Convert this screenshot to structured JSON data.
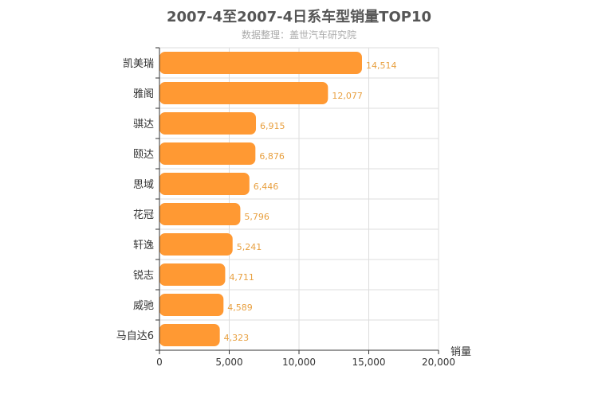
{
  "title": "2007-4至2007-4日系车型销量TOP10",
  "subtitle": "数据整理：盖世汽车研究院",
  "colors": {
    "bar": "#ff9933",
    "value_label": "#e8a040",
    "grid": "#dddddd",
    "axis": "#333333"
  },
  "chart_data": {
    "type": "bar",
    "orientation": "horizontal",
    "title": "2007-4至2007-4日系车型销量TOP10",
    "subtitle": "数据整理：盖世汽车研究院",
    "categories": [
      "凯美瑞",
      "雅阁",
      "骐达",
      "颐达",
      "思域",
      "花冠",
      "轩逸",
      "锐志",
      "威驰",
      "马自达6"
    ],
    "values": [
      14514,
      12077,
      6915,
      6876,
      6446,
      5796,
      5241,
      4711,
      4589,
      4323
    ],
    "value_labels": [
      "14,514",
      "12,077",
      "6,915",
      "6,876",
      "6,446",
      "5,796",
      "5,241",
      "4,711",
      "4,589",
      "4,323"
    ],
    "xlabel": "销量",
    "ylabel": "",
    "xlim": [
      0,
      20000
    ],
    "x_ticks": [
      0,
      5000,
      10000,
      15000,
      20000
    ],
    "x_tick_labels": [
      "0",
      "5,000",
      "10,000",
      "15,000",
      "20,000"
    ],
    "grid": true,
    "legend": "none"
  }
}
